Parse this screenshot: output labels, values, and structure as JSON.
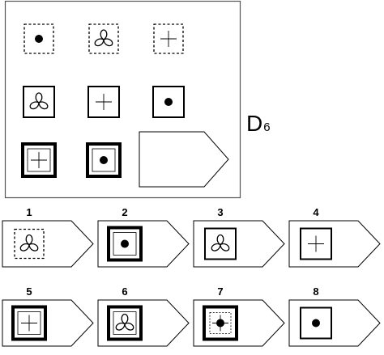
{
  "puzzle": {
    "title": "D",
    "number": "6",
    "matrix": [
      {
        "frame": "dashed",
        "symbol": "dot"
      },
      {
        "frame": "dashed",
        "symbol": "trefoil"
      },
      {
        "frame": "dashed",
        "symbol": "plus"
      },
      {
        "frame": "medium",
        "symbol": "trefoil"
      },
      {
        "frame": "medium",
        "symbol": "plus"
      },
      {
        "frame": "medium",
        "symbol": "dot"
      },
      {
        "frame": "double-thick",
        "symbol": "plus"
      },
      {
        "frame": "double-thick",
        "symbol": "dot"
      },
      {
        "frame": "answer-slot",
        "symbol": "none"
      }
    ],
    "options": [
      {
        "label": "1",
        "frame": "dashed",
        "symbol": "trefoil"
      },
      {
        "label": "2",
        "frame": "double-thick",
        "symbol": "dot"
      },
      {
        "label": "3",
        "frame": "medium",
        "symbol": "trefoil"
      },
      {
        "label": "4",
        "frame": "medium",
        "symbol": "plus"
      },
      {
        "label": "5",
        "frame": "double-thick",
        "symbol": "plus"
      },
      {
        "label": "6",
        "frame": "double-thick",
        "symbol": "trefoil"
      },
      {
        "label": "7",
        "frame": "thick-with-dashed-inner",
        "symbol": "dot-plus"
      },
      {
        "label": "8",
        "frame": "medium",
        "symbol": "dot"
      }
    ]
  }
}
